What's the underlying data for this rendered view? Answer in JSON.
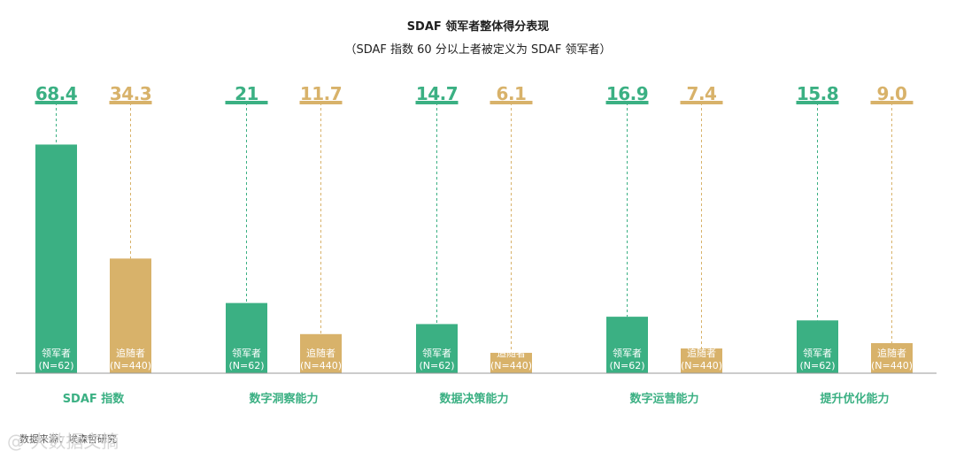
{
  "chart_data": {
    "type": "bar",
    "title": "SDAF 领军者整体得分表现",
    "subtitle": "（SDAF 指数 60 分以上者被定义为 SDAF 领军者）",
    "categories": [
      "SDAF 指数",
      "数字洞察能力",
      "数据决策能力",
      "数字运营能力",
      "提升优化能力"
    ],
    "series": [
      {
        "name": "领军者",
        "sample": "(N=62)",
        "color": "#3bb083",
        "values": [
          68.4,
          21,
          14.7,
          16.9,
          15.8
        ]
      },
      {
        "name": "追随者",
        "sample": "(N=440)",
        "color": "#d8b26a",
        "values": [
          34.3,
          11.7,
          6.1,
          7.4,
          9.0
        ]
      }
    ],
    "value_labels": [
      [
        "68.4",
        "34.3"
      ],
      [
        "21",
        "11.7"
      ],
      [
        "14.7",
        "6.1"
      ],
      [
        "16.9",
        "7.4"
      ],
      [
        "15.8",
        "9.0"
      ]
    ],
    "colors": {
      "category_label": "#3bb083",
      "axis": "#9a9a9a"
    }
  },
  "source_note": "数据来源：埃森哲研究",
  "watermark": "@ 大数据文摘"
}
